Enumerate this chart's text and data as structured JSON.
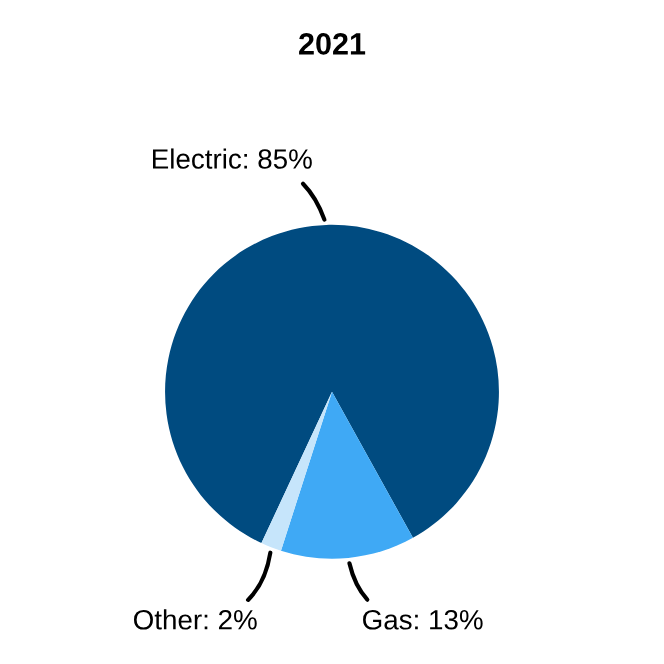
{
  "chart_data": {
    "type": "pie",
    "title": "2021",
    "categories": [
      "Electric",
      "Gas",
      "Other"
    ],
    "values": [
      85,
      13,
      2
    ],
    "colors": [
      "#004b80",
      "#3fa9f5",
      "#c6e5fb"
    ],
    "value_labels": [
      "85%",
      "13%",
      "2%"
    ]
  }
}
